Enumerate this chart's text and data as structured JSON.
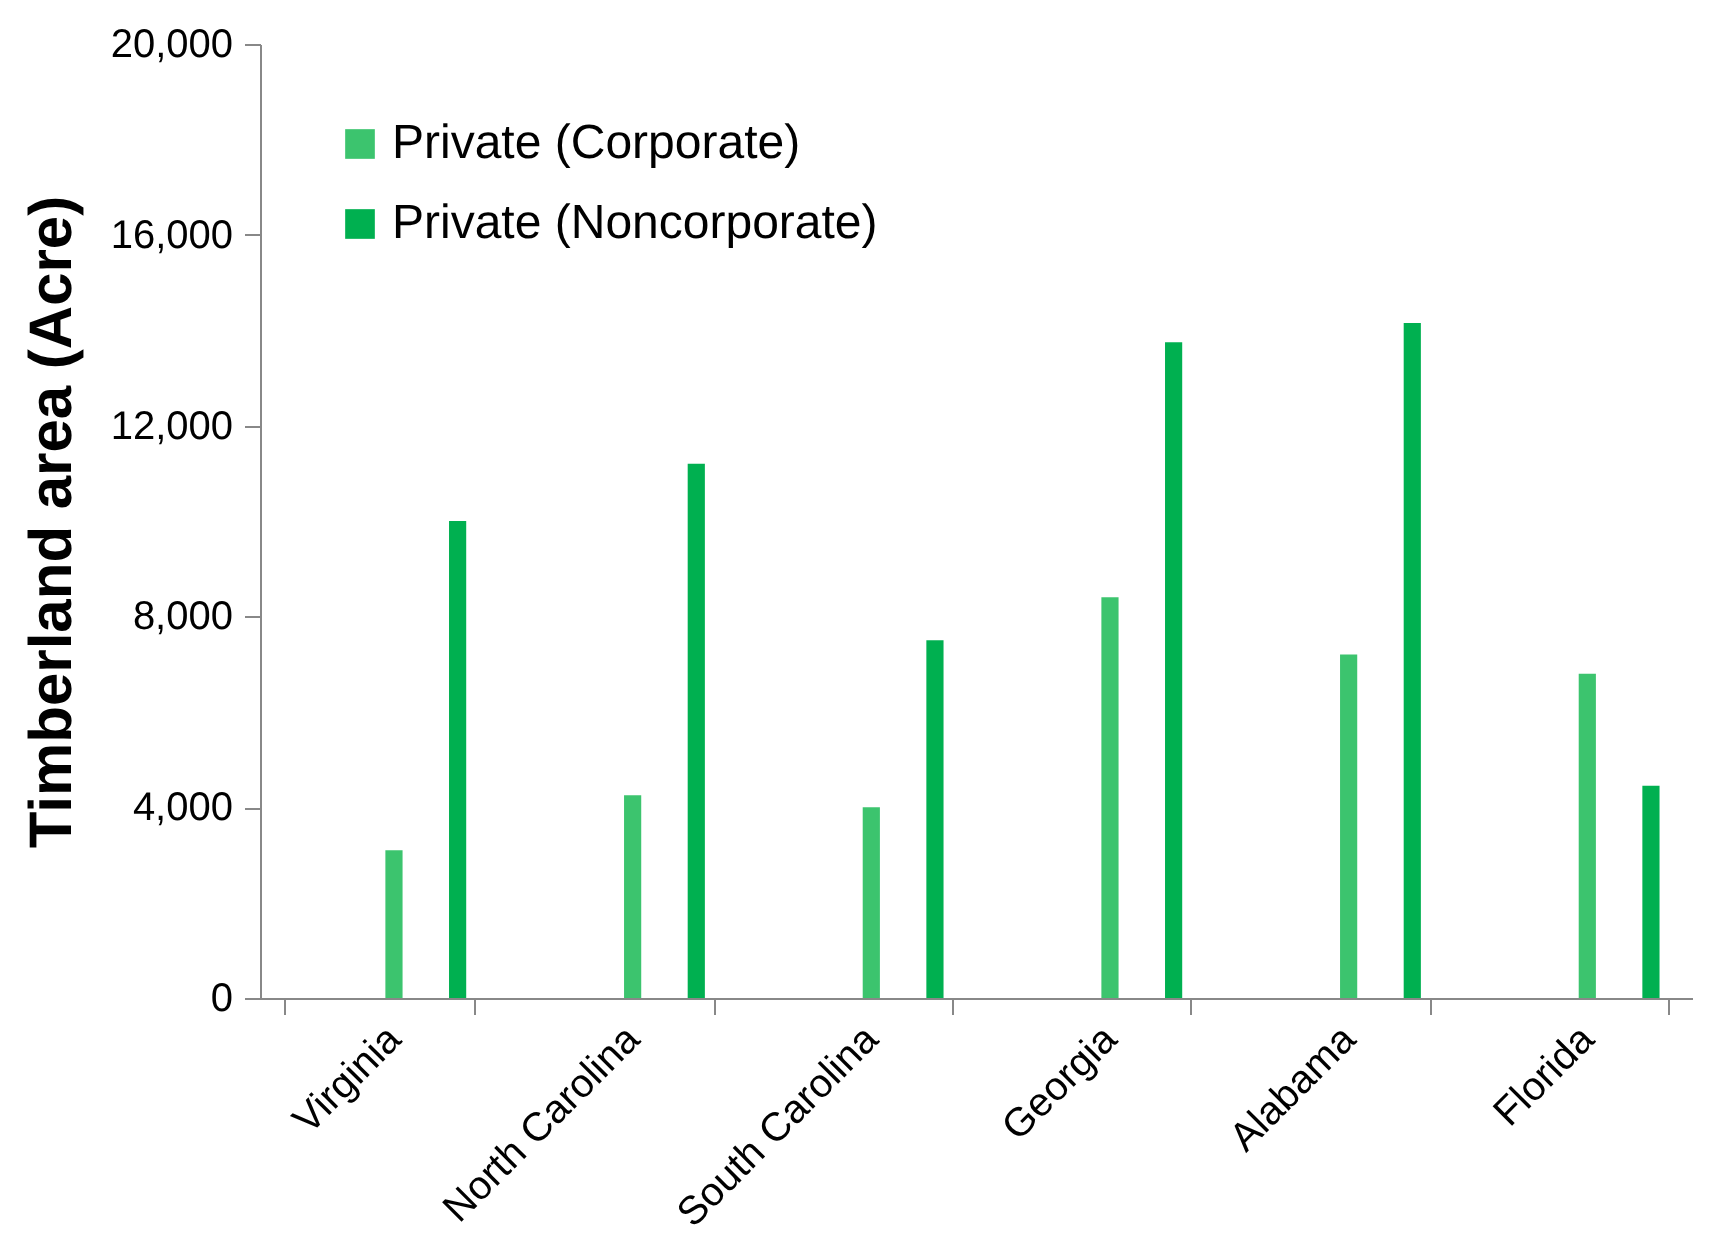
{
  "chart_data": {
    "type": "bar",
    "ylabel": "Timberland area (Acre)",
    "categories": [
      "Virginia",
      "North Carolina",
      "South Carolina",
      "Georgia",
      "Alabama",
      "Florida"
    ],
    "series": [
      {
        "name": "Private (Corporate)",
        "color": "#3cc46e",
        "values": [
          3100,
          4250,
          4000,
          8400,
          7200,
          6800
        ]
      },
      {
        "name": "Private (Noncorporate)",
        "color": "#00b050",
        "values": [
          10000,
          11200,
          7500,
          13750,
          14150,
          4450
        ]
      }
    ],
    "ylim": [
      0,
      20000
    ],
    "yticks": [
      0,
      {
        "value": 4000,
        "label": "4,000"
      },
      {
        "value": 8000,
        "label": "8,000"
      },
      {
        "value": 12000,
        "label": "12,000"
      },
      {
        "value": 16000,
        "label": "16,000"
      },
      {
        "value": 20000,
        "label": "20,000"
      }
    ],
    "legend": "top left",
    "grid": false
  }
}
